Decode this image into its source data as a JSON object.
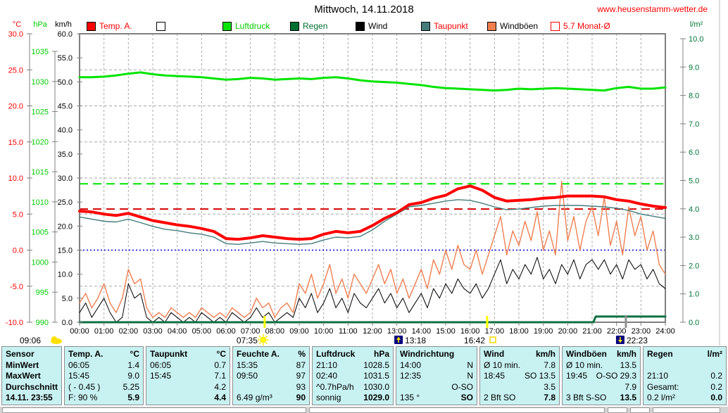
{
  "page": {
    "title": "Mittwoch, 14.11.2018",
    "website": "www.heusenstamm-wetter.de"
  },
  "legend": {
    "items": [
      {
        "label": "Temp. A.",
        "swatch": "#ff0000",
        "border": "#000000",
        "text": "#ff0000"
      },
      {
        "label": "",
        "swatch": "#ffffff",
        "border": "#000000",
        "text": "#000000"
      },
      {
        "label": "Luftdruck",
        "swatch": "#00e400",
        "border": "#000000",
        "text": "#00cc00"
      },
      {
        "label": "Regen",
        "swatch": "#007030",
        "border": "#000000",
        "text": "#007030"
      },
      {
        "label": "Wind",
        "swatch": "#000000",
        "border": "#000000",
        "text": "#000000"
      },
      {
        "label": "Taupunkt",
        "swatch": "#447c7c",
        "border": "#000000",
        "text": "#ff0000"
      },
      {
        "label": "Windböen",
        "swatch": "#f07f4f",
        "border": "#000000",
        "text": "#000000"
      },
      {
        "label": "5.7 Monat-Ø",
        "swatch": "#ffffff",
        "border": "#ff0000",
        "text": "#ff0000"
      }
    ]
  },
  "chart_data": {
    "type": "line",
    "title": "Mittwoch, 14.11.2018",
    "x_unit": "hours",
    "x_range": [
      0,
      24
    ],
    "x_tick_labels": [
      "00:00",
      "01:00",
      "02:00",
      "03:00",
      "04:00",
      "05:00",
      "06:00",
      "07:00",
      "08:00",
      "09:00",
      "10:00",
      "11:00",
      "12:00",
      "13:00",
      "14:00",
      "15:00",
      "16:00",
      "17:00",
      "18:00",
      "19:00",
      "20:00",
      "21:00",
      "22:00",
      "23:00",
      "24:00"
    ],
    "grid": true,
    "axes": [
      {
        "id": "temp",
        "unit": "°C",
        "color": "#ff0000",
        "min": -10,
        "max": 30,
        "ticks": [
          "30.0",
          "25.0",
          "20.0",
          "15.0",
          "10.0",
          "5.0",
          "0.0",
          "-5.0",
          "-10.0"
        ]
      },
      {
        "id": "hpa",
        "unit": "hPa",
        "color": "#00cc00",
        "min": 990,
        "max": 1035,
        "ticks": [
          "1035",
          "1030",
          "1025",
          "1020",
          "1015",
          "1010",
          "1005",
          "1000",
          "995",
          "990"
        ]
      },
      {
        "id": "kmh",
        "unit": "km/h",
        "color": "#000000",
        "min": 0,
        "max": 60,
        "ticks": [
          "60.0",
          "55.0",
          "50.0",
          "45.0",
          "40.0",
          "35.0",
          "30.0",
          "25.0",
          "20.0",
          "15.0",
          "10.0",
          "5.0",
          "0.0"
        ]
      },
      {
        "id": "lm2",
        "unit": "l/m²",
        "color": "#007438",
        "min": 0,
        "max": 10,
        "ticks": [
          "10.0",
          "9.0",
          "8.0",
          "7.0",
          "6.0",
          "5.0",
          "4.0",
          "3.0",
          "2.0",
          "1.0",
          "0.0"
        ]
      }
    ],
    "reference_lines": [
      {
        "axis": "hpa",
        "value": 1013,
        "color": "#00e400",
        "style": "dash",
        "label": ""
      },
      {
        "axis": "temp",
        "value": 5.7,
        "color": "#d40000",
        "style": "dash",
        "label": "5.7 Monat-Ø"
      },
      {
        "axis": "temp",
        "value": 0,
        "color": "#0000ee",
        "style": "dot",
        "label": ""
      }
    ],
    "series": [
      {
        "name": "Luftdruck",
        "axis": "hpa",
        "color": "#00e400",
        "width": 3,
        "x_step": 0.5,
        "values": [
          1030.7,
          1030.7,
          1030.8,
          1031.0,
          1031.3,
          1031.5,
          1031.2,
          1031.0,
          1030.9,
          1030.8,
          1030.7,
          1030.5,
          1030.3,
          1030.4,
          1030.6,
          1030.5,
          1030.3,
          1030.4,
          1030.5,
          1030.4,
          1030.6,
          1030.7,
          1030.5,
          1030.2,
          1030.0,
          1029.9,
          1029.8,
          1029.6,
          1029.4,
          1029.1,
          1028.9,
          1028.8,
          1028.7,
          1028.6,
          1028.5,
          1028.6,
          1028.8,
          1028.7,
          1028.8,
          1028.9,
          1028.8,
          1028.7,
          1028.6,
          1028.5,
          1028.9,
          1029.1,
          1028.8,
          1028.8,
          1029.0
        ]
      },
      {
        "name": "Windböen",
        "axis": "kmh",
        "color": "#f07f4f",
        "width": 1.4,
        "x_step": 0.25,
        "values": [
          4,
          6,
          3,
          5,
          8,
          4,
          2,
          5,
          11,
          8,
          9,
          3,
          1,
          2,
          1,
          3,
          2,
          1,
          2,
          1,
          3,
          2,
          1,
          2,
          1,
          3,
          2,
          1,
          2,
          5,
          3,
          4,
          1,
          3,
          4,
          2,
          8,
          6,
          10,
          5,
          8,
          12,
          6,
          9,
          5,
          10,
          8,
          6,
          9,
          12,
          8,
          11,
          6,
          9,
          5,
          8,
          11,
          7,
          13,
          10,
          15,
          11,
          16,
          12,
          11,
          15,
          10,
          14,
          18,
          22,
          14,
          19,
          16,
          21,
          17,
          23,
          15,
          19,
          14,
          29.3,
          17,
          22,
          15,
          21,
          24,
          18,
          26,
          16,
          21,
          14,
          24,
          18,
          22,
          15,
          19,
          12,
          10
        ]
      },
      {
        "name": "Wind",
        "axis": "kmh",
        "color": "#000000",
        "width": 1,
        "x_step": 0.25,
        "values": [
          2,
          4,
          1,
          3,
          5,
          2,
          0,
          1,
          8,
          5,
          6,
          1,
          0,
          1,
          0,
          2,
          1,
          0,
          1,
          0,
          2,
          1,
          0,
          1,
          0,
          2,
          1,
          0,
          1,
          3,
          1,
          2,
          0,
          1,
          2,
          1,
          5,
          3,
          6,
          2,
          4,
          7,
          3,
          5,
          2,
          6,
          4,
          3,
          5,
          7,
          4,
          6,
          3,
          5,
          2,
          4,
          6,
          3,
          7,
          5,
          8,
          6,
          9,
          7,
          6,
          8,
          5,
          7,
          10,
          13,
          8,
          11,
          9,
          12,
          10,
          13.5,
          9,
          11,
          8,
          12,
          10,
          13,
          9,
          12,
          13,
          11,
          13,
          10,
          12,
          9,
          13,
          11,
          12,
          9,
          11,
          8,
          7
        ]
      },
      {
        "name": "Taupunkt",
        "axis": "temp",
        "color": "#447c7c",
        "width": 1.4,
        "x_step": 0.5,
        "values": [
          4.6,
          4.3,
          4.0,
          3.9,
          4.3,
          3.8,
          3.3,
          2.9,
          2.7,
          2.4,
          2.2,
          1.8,
          0.9,
          0.8,
          1.0,
          1.2,
          1.0,
          0.9,
          0.8,
          0.9,
          1.4,
          1.8,
          1.7,
          1.9,
          2.8,
          4.0,
          5.0,
          6.0,
          6.2,
          6.5,
          6.8,
          7.0,
          6.9,
          6.5,
          6.0,
          5.6,
          5.7,
          5.9,
          6.1,
          6.2,
          6.2,
          6.2,
          6.1,
          6.0,
          5.8,
          5.5,
          5.0,
          4.7,
          4.4
        ]
      },
      {
        "name": "Regen",
        "axis": "lm2",
        "color": "#0d7040",
        "width": 3,
        "x": [
          0,
          21.05,
          21.15,
          24
        ],
        "values": [
          0,
          0,
          0.2,
          0.2
        ]
      },
      {
        "name": "Temp. A.",
        "axis": "temp",
        "color": "#ff0000",
        "width": 4,
        "x_step": 0.5,
        "values": [
          5.4,
          5.3,
          5.0,
          4.8,
          5.1,
          4.6,
          4.1,
          3.8,
          3.5,
          3.3,
          3.0,
          2.6,
          1.6,
          1.5,
          1.7,
          2.0,
          1.8,
          1.6,
          1.5,
          1.6,
          2.2,
          2.6,
          2.4,
          2.6,
          3.4,
          4.4,
          5.2,
          6.3,
          6.6,
          7.2,
          7.6,
          8.5,
          8.9,
          8.3,
          7.3,
          6.8,
          6.9,
          7.0,
          7.2,
          7.3,
          7.5,
          7.5,
          7.5,
          7.4,
          7.0,
          6.8,
          6.4,
          6.1,
          5.9
        ]
      }
    ]
  },
  "sun_moon": {
    "left_time": "09:06",
    "markers": [
      {
        "time": "07:35",
        "hours": 7.583,
        "icon": "sun-icon",
        "side": "right",
        "tick": "#ffff00"
      },
      {
        "time": "13:18",
        "hours": 13.3,
        "icon": "moon-up-icon",
        "side": "left",
        "tick": ""
      },
      {
        "time": "16:42",
        "hours": 16.7,
        "icon": "sunset-icon",
        "side": "right",
        "tick": "#ffff00"
      },
      {
        "time": "22:23",
        "hours": 22.383,
        "icon": "moon-down-icon",
        "side": "left",
        "tick": "#909090"
      }
    ]
  },
  "table": {
    "row_labels": [
      "Sensor",
      "MinWert",
      "MaxWert",
      "Durchschnitt",
      "14.11. 23:55"
    ],
    "columns": [
      {
        "name": "Temp. A.",
        "unit": "°C",
        "rows": [
          [
            "06:05",
            "1.4"
          ],
          [
            "15:45",
            "9.0"
          ],
          [
            "( - 0.45 )",
            "5.25"
          ],
          [
            "F: 90 %",
            "5.9"
          ]
        ]
      },
      {
        "name": "Taupunkt",
        "unit": "°C",
        "rows": [
          [
            "06:05",
            "0.7"
          ],
          [
            "15:45",
            "7.1"
          ],
          [
            "",
            "4.2"
          ],
          [
            "",
            "4.4"
          ]
        ]
      },
      {
        "name": "Feuchte A.",
        "unit": "%",
        "rows": [
          [
            "15:35",
            "87"
          ],
          [
            "09:50",
            "97"
          ],
          [
            "",
            "93"
          ],
          [
            "6.49 g/m³",
            "90"
          ]
        ]
      },
      {
        "name": "Luftdruck",
        "unit": "hPa",
        "rows": [
          [
            "21:10",
            "1028.5"
          ],
          [
            "02:40",
            "1031.5"
          ],
          [
            "^0.7hPa/h",
            "1030.0"
          ],
          [
            "sonnig",
            "1029.0"
          ]
        ]
      },
      {
        "name": "Windrichtung",
        "unit": "",
        "rows": [
          [
            "14:00",
            "N"
          ],
          [
            "12:35",
            "N"
          ],
          [
            "",
            "O-SO"
          ],
          [
            "135 °",
            "SO"
          ]
        ]
      },
      {
        "name": "Wind",
        "unit": "km/h",
        "rows": [
          [
            "Ø 10 min.",
            "7.8"
          ],
          [
            "18:45",
            "SO 13.5"
          ],
          [
            "",
            "3.5"
          ],
          [
            "2 Bft SO",
            "7.8"
          ]
        ]
      },
      {
        "name": "Windböen",
        "unit": "km/h",
        "rows": [
          [
            "Ø 10 min.",
            "13.5"
          ],
          [
            "19:45",
            "O-SO 29.3"
          ],
          [
            "",
            "7.9"
          ],
          [
            "3 Bft S-SO",
            "13.5"
          ]
        ]
      },
      {
        "name": "Regen",
        "unit": "l/m²",
        "rows": [
          [
            "",
            ""
          ],
          [
            "21:10",
            "0.2"
          ],
          [
            "Gesamt:",
            "0.2"
          ],
          [
            "0.2 l/m²",
            "0.0"
          ]
        ]
      }
    ]
  }
}
